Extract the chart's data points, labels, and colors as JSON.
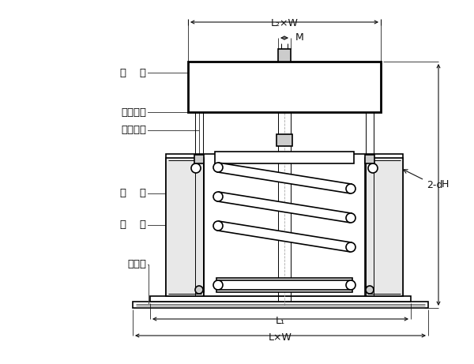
{
  "bg_color": "#ffffff",
  "line_color": "#000000",
  "fig_width": 6.0,
  "fig_height": 4.61,
  "labels": {
    "top_cover": "上    盖",
    "adj_nut": "调节螺母",
    "adj_bolt": "调节螺栓",
    "spring": "弹    簧",
    "base": "底    座",
    "rubber": "橡胶坤",
    "dim_L2W": "L₂×W",
    "dim_M": "M",
    "dim_H": "H",
    "dim_2d": "2-d",
    "dim_L1": "L₁",
    "dim_LW": "L×W"
  }
}
